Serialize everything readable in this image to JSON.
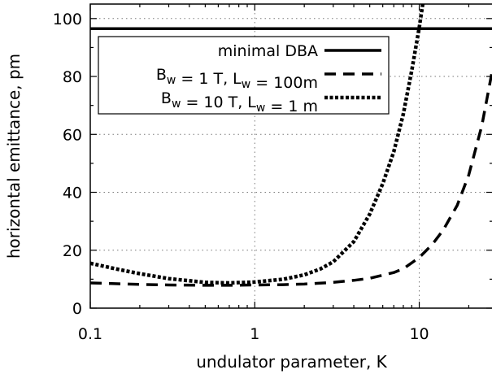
{
  "chart_data": {
    "type": "line",
    "xlabel": "undulator parameter, K",
    "ylabel": "horizontal emittance, pm",
    "xscale": "log",
    "xlim": [
      0.1,
      28
    ],
    "ylim": [
      0,
      105
    ],
    "grid": true,
    "legend_position": "top-left",
    "x_ticks": [
      0.1,
      1,
      10
    ],
    "x_tick_labels": [
      "0.1",
      "1",
      "10"
    ],
    "y_ticks": [
      0,
      20,
      40,
      60,
      80,
      100
    ],
    "y_tick_labels": [
      "0",
      "20",
      "40",
      "60",
      "80",
      "100"
    ],
    "series": [
      {
        "name": "minimal DBA",
        "legend": [
          {
            "text": "minimal DBA"
          }
        ],
        "style": "solid",
        "x": [
          0.1,
          28
        ],
        "y": [
          96.5,
          96.5
        ]
      },
      {
        "name": "B_w = 1 T, L_w = 100m",
        "legend": [
          {
            "text": "B"
          },
          {
            "text": "w",
            "sub": true
          },
          {
            "text": " = 1 T, L"
          },
          {
            "text": "w",
            "sub": true
          },
          {
            "text": " = 100m"
          }
        ],
        "style": "dashed",
        "x": [
          0.1,
          0.2,
          0.3,
          0.5,
          0.7,
          1.0,
          1.5,
          2,
          3,
          4,
          5,
          7,
          8,
          10,
          12,
          14,
          17,
          20,
          24,
          28
        ],
        "y": [
          8.7,
          8.2,
          8.0,
          7.9,
          7.9,
          8.0,
          8.1,
          8.3,
          8.9,
          9.6,
          10.3,
          12.3,
          13.6,
          17.5,
          22.0,
          27.0,
          35.5,
          46.0,
          63.0,
          83.0
        ]
      },
      {
        "name": "B_w = 10 T, L_w = 1 m",
        "legend": [
          {
            "text": "B"
          },
          {
            "text": "w",
            "sub": true
          },
          {
            "text": " = 10 T, L"
          },
          {
            "text": "w",
            "sub": true
          },
          {
            "text": " = 1 m"
          }
        ],
        "style": "dotted",
        "x": [
          0.1,
          0.15,
          0.2,
          0.3,
          0.5,
          0.7,
          1.0,
          1.5,
          2,
          2.5,
          3,
          4,
          5,
          6,
          7,
          8,
          9,
          10,
          10.5
        ],
        "y": [
          15.5,
          13.3,
          11.9,
          10.2,
          8.9,
          8.7,
          9.0,
          10.0,
          11.5,
          13.5,
          16.0,
          23.0,
          32.5,
          43.0,
          54.0,
          67.0,
          82.0,
          97.0,
          105.0
        ]
      }
    ]
  }
}
